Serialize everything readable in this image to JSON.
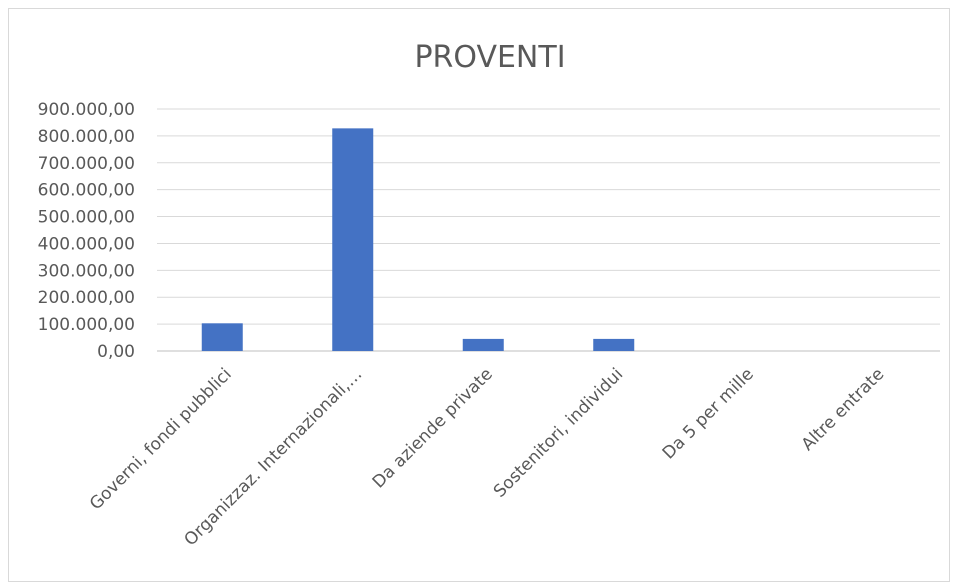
{
  "chart_data": {
    "type": "bar",
    "title": "PROVENTI",
    "categories": [
      "Governi, fondi pubblici",
      "Organizzaz. Internazionali,…",
      "Da aziende private",
      "Sostenitori, individui",
      "Da 5 per mille",
      "Altre entrate"
    ],
    "values": [
      103000,
      828000,
      45000,
      45000,
      0,
      0
    ],
    "ylim": [
      0,
      900000
    ],
    "yticks": [
      {
        "value": 900000,
        "label": "900.000,00"
      },
      {
        "value": 800000,
        "label": "800.000,00"
      },
      {
        "value": 700000,
        "label": "700.000,00"
      },
      {
        "value": 600000,
        "label": "600.000,00"
      },
      {
        "value": 500000,
        "label": "500.000,00"
      },
      {
        "value": 400000,
        "label": "400.000,00"
      },
      {
        "value": 300000,
        "label": "300.000,00"
      },
      {
        "value": 200000,
        "label": "200.000,00"
      },
      {
        "value": 100000,
        "label": "100.000,00"
      },
      {
        "value": 0,
        "label": "0,00"
      }
    ],
    "bar_color": "#4472c4",
    "grid": true,
    "legend": "none"
  }
}
